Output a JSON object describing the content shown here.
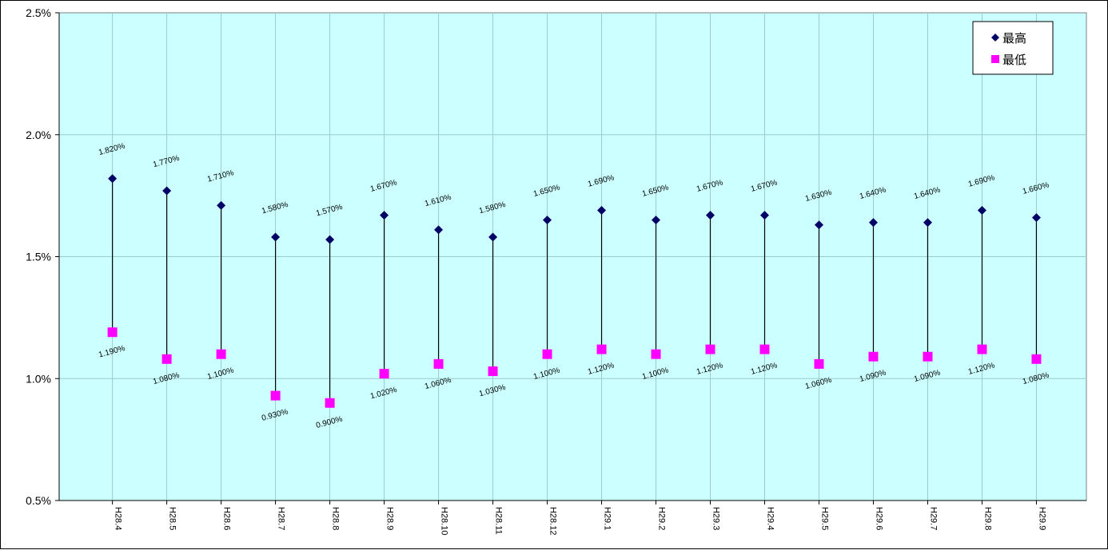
{
  "chart_data": {
    "type": "scatter",
    "categories": [
      "H28.4",
      "H28.5",
      "H28.6",
      "H28.7",
      "H28.8",
      "H28.9",
      "H28.10",
      "H28.11",
      "H28.12",
      "H29.1",
      "H29.2",
      "H29.3",
      "H29.4",
      "H29.5",
      "H29.6",
      "H29.7",
      "H29.8",
      "H29.9"
    ],
    "series": [
      {
        "name": "最高",
        "marker": "diamond",
        "color": "#000066",
        "values": [
          1.82,
          1.77,
          1.71,
          1.58,
          1.57,
          1.67,
          1.61,
          1.58,
          1.65,
          1.69,
          1.65,
          1.67,
          1.67,
          1.63,
          1.64,
          1.64,
          1.69,
          1.66
        ],
        "labels": [
          "1.820%",
          "1.770%",
          "1.710%",
          "1.580%",
          "1.570%",
          "1.670%",
          "1.610%",
          "1.580%",
          "1.650%",
          "1.690%",
          "1.650%",
          "1.670%",
          "1.670%",
          "1.630%",
          "1.640%",
          "1.640%",
          "1.690%",
          "1.660%"
        ]
      },
      {
        "name": "最低",
        "marker": "square",
        "color": "#ff00ff",
        "values": [
          1.19,
          1.08,
          1.1,
          0.93,
          0.9,
          1.02,
          1.06,
          1.03,
          1.1,
          1.12,
          1.1,
          1.12,
          1.12,
          1.06,
          1.09,
          1.09,
          1.12,
          1.08
        ],
        "labels": [
          "1.190%",
          "1.080%",
          "1.100%",
          "0.930%",
          "0.900%",
          "1.020%",
          "1.060%",
          "1.030%",
          "1.100%",
          "1.120%",
          "1.100%",
          "1.120%",
          "1.120%",
          "1.060%",
          "1.090%",
          "1.090%",
          "1.120%",
          "1.080%"
        ]
      }
    ],
    "ylim": [
      0.5,
      2.5
    ],
    "yticks": [
      0.5,
      1.0,
      1.5,
      2.0,
      2.5
    ],
    "ytick_labels": [
      "0.5%",
      "1.0%",
      "1.5%",
      "2.0%",
      "2.5%"
    ],
    "high_low_lines": true,
    "grid": true,
    "legend_position": "top-right",
    "plot_background": "#ccffff",
    "gridline_color": "#99cccc"
  }
}
